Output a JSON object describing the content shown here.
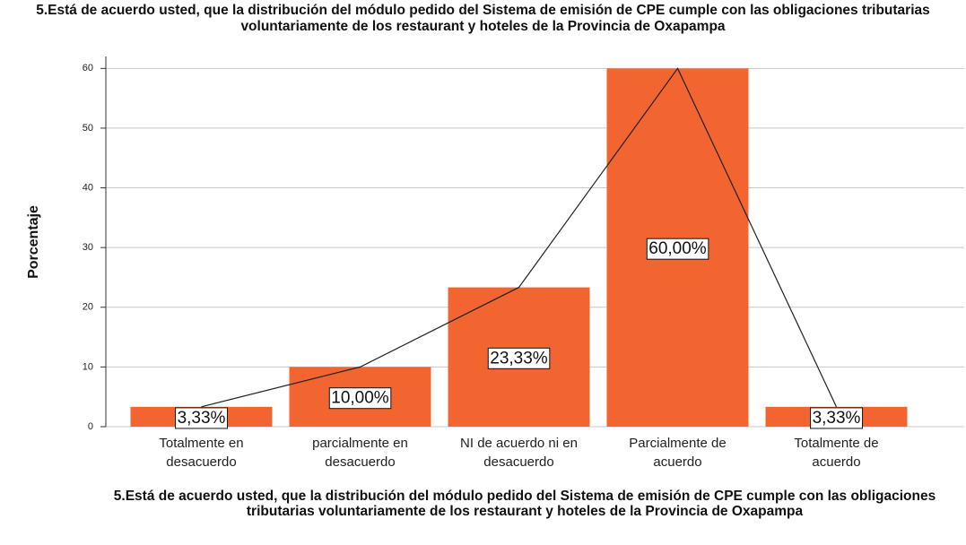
{
  "chart_data": {
    "type": "bar",
    "title": "5.Está de acuerdo usted, que la distribución del módulo pedido del Sistema de emisión de CPE cumple con las obligaciones tributarias voluntariamente de los restaurant y hoteles de la Provincia de Oxapampa",
    "x_label": "5.Está de acuerdo usted, que la distribución del módulo pedido del Sistema de emisión de CPE cumple con las obligaciones tributarias voluntariamente de los restaurant y hoteles de la Provincia de Oxapampa",
    "y_label": "Porcentaje",
    "categories": [
      "Totalmente en desacuerdo",
      "parcialmente en desacuerdo",
      "NI de acuerdo ni en desacuerdo",
      "Parcialmente de acuerdo",
      "Totalmente de acuerdo"
    ],
    "values": [
      3.33,
      10,
      23.33,
      60,
      3.33
    ],
    "value_labels": [
      "3,33%",
      "10,00%",
      "23,33%",
      "60,00%",
      "3,33%"
    ],
    "color": "#f26531",
    "line_color": "#222222",
    "ylim": [
      0,
      62
    ],
    "yticks": [
      0,
      10,
      20,
      30,
      40,
      50,
      60
    ],
    "grid": true
  }
}
